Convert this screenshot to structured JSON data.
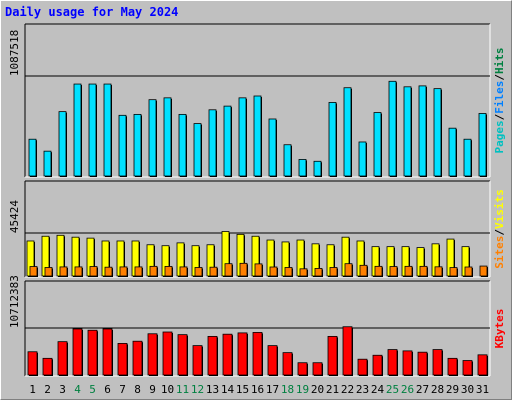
{
  "title": "Daily usage for May 2024",
  "chart_data": [
    {
      "type": "bar",
      "categories": [
        "1",
        "2",
        "3",
        "4",
        "5",
        "6",
        "7",
        "8",
        "9",
        "10",
        "11",
        "12",
        "13",
        "14",
        "15",
        "16",
        "17",
        "18",
        "19",
        "20",
        "21",
        "22",
        "23",
        "24",
        "25",
        "26",
        "27",
        "28",
        "29",
        "30",
        "31"
      ],
      "weekend_days": [
        "4",
        "5",
        "11",
        "12",
        "18",
        "19",
        "25",
        "26"
      ],
      "ylabel_max": "1087518",
      "ylim": [
        0,
        1087518
      ],
      "legend": [
        "Pages",
        "Files",
        "Hits"
      ],
      "legend_colors": [
        "#00c0c0",
        "#0080ff",
        "#008040"
      ],
      "series": [
        {
          "name": "Hits",
          "color": "#008040",
          "values": [
            0,
            0,
            0,
            0,
            0,
            0,
            0,
            0,
            0,
            0,
            0,
            0,
            0,
            0,
            0,
            0,
            0,
            0,
            0,
            0,
            0,
            0,
            0,
            0,
            0,
            0,
            0,
            0,
            0,
            0,
            0
          ]
        },
        {
          "name": "Files",
          "color": "#00e0ff",
          "values": [
            400000,
            270000,
            700000,
            1000000,
            1000000,
            1000000,
            660000,
            670000,
            830000,
            850000,
            670000,
            570000,
            720000,
            760000,
            850000,
            870000,
            620000,
            340000,
            180000,
            160000,
            800000,
            960000,
            370000,
            690000,
            1030000,
            970000,
            980000,
            950000,
            520000,
            400000,
            680000
          ]
        }
      ]
    },
    {
      "type": "bar",
      "categories": [
        "1",
        "2",
        "3",
        "4",
        "5",
        "6",
        "7",
        "8",
        "9",
        "10",
        "11",
        "12",
        "13",
        "14",
        "15",
        "16",
        "17",
        "18",
        "19",
        "20",
        "21",
        "22",
        "23",
        "24",
        "25",
        "26",
        "27",
        "28",
        "29",
        "30",
        "31"
      ],
      "ylabel_max": "45424",
      "ylim": [
        0,
        45424
      ],
      "legend": [
        "Sites",
        "Visits"
      ],
      "legend_colors": [
        "#ff8000",
        "#ffff00"
      ],
      "series": [
        {
          "name": "Visits",
          "color": "#ffff00",
          "values": [
            37000,
            42000,
            43000,
            41000,
            40000,
            37000,
            37000,
            37000,
            33000,
            32000,
            35000,
            32000,
            33000,
            47000,
            44000,
            42000,
            38000,
            36000,
            38000,
            34000,
            33000,
            41000,
            37000,
            31000,
            31000,
            31000,
            30000,
            34000,
            39000,
            31000,
            0
          ]
        },
        {
          "name": "Sites",
          "color": "#ff8000",
          "values": [
            10000,
            9000,
            9600,
            9600,
            10000,
            9300,
            9600,
            9600,
            10200,
            10100,
            9600,
            9000,
            9300,
            13000,
            13400,
            12800,
            9500,
            9000,
            7600,
            8000,
            9000,
            13000,
            11300,
            10200,
            10000,
            10200,
            10200,
            9700,
            8900,
            9500,
            10500
          ]
        }
      ]
    },
    {
      "type": "bar",
      "categories": [
        "1",
        "2",
        "3",
        "4",
        "5",
        "6",
        "7",
        "8",
        "9",
        "10",
        "11",
        "12",
        "13",
        "14",
        "15",
        "16",
        "17",
        "18",
        "19",
        "20",
        "21",
        "22",
        "23",
        "24",
        "25",
        "26",
        "27",
        "28",
        "29",
        "30",
        "31"
      ],
      "ylabel_max": "10712383",
      "ylim": [
        0,
        10712383
      ],
      "legend": [
        "KBytes"
      ],
      "legend_colors": [
        "#ff0000"
      ],
      "series": [
        {
          "name": "KBytes",
          "color": "#ff0000",
          "values": [
            5300000,
            3800000,
            7600000,
            10500000,
            10200000,
            10500000,
            7200000,
            7700000,
            9400000,
            9800000,
            9200000,
            6700000,
            8800000,
            9300000,
            9600000,
            9700000,
            6700000,
            5100000,
            2800000,
            2800000,
            8800000,
            11000000,
            3600000,
            4500000,
            5800000,
            5500000,
            5200000,
            5800000,
            3800000,
            3300000,
            4600000
          ]
        }
      ]
    }
  ]
}
